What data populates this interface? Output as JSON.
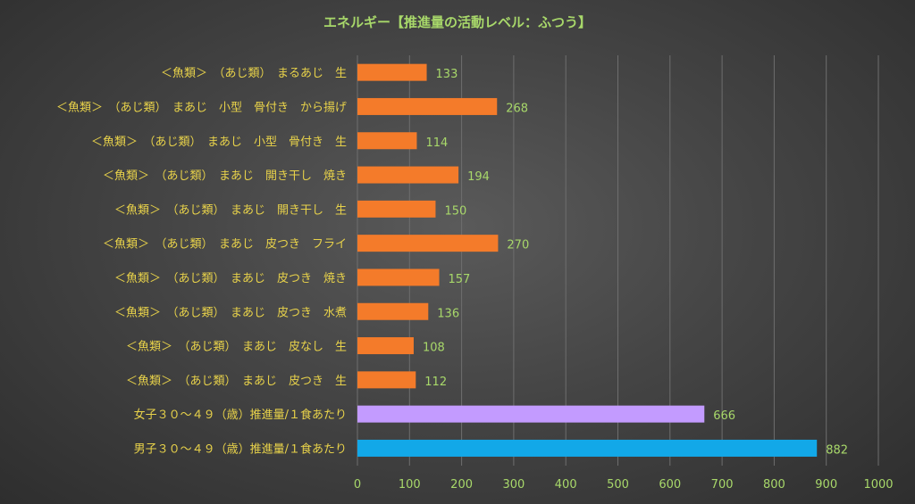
{
  "chart_data": {
    "type": "bar",
    "orientation": "horizontal",
    "title": "エネルギー【推進量の活動レベル：ふつう】",
    "xlabel": "",
    "ylabel": "",
    "xlim": [
      0,
      1000
    ],
    "xticks": [
      0,
      100,
      200,
      300,
      400,
      500,
      600,
      700,
      800,
      900,
      1000
    ],
    "grid": "vertical",
    "legend": "none",
    "data_labels": true,
    "colors": {
      "food": "#f47b2a",
      "female": "#c39bff",
      "male": "#12a8e8",
      "title_text": "#a8d86a",
      "label_text": "#e8d24a",
      "value_text": "#a8d86a",
      "grid": "#6e6e6e"
    },
    "bars": [
      {
        "label": "＜魚類＞　（あじ類）　まるあじ　生",
        "value": 133,
        "group": "food"
      },
      {
        "label": "＜魚類＞　（あじ類）　まあじ　小型　骨付き　から揚げ",
        "value": 268,
        "group": "food"
      },
      {
        "label": "＜魚類＞　（あじ類）　まあじ　小型　骨付き　生",
        "value": 114,
        "group": "food"
      },
      {
        "label": "＜魚類＞　（あじ類）　まあじ　開き干し　焼き",
        "value": 194,
        "group": "food"
      },
      {
        "label": "＜魚類＞　（あじ類）　まあじ　開き干し　生",
        "value": 150,
        "group": "food"
      },
      {
        "label": "＜魚類＞　（あじ類）　まあじ　皮つき　フライ",
        "value": 270,
        "group": "food"
      },
      {
        "label": "＜魚類＞　（あじ類）　まあじ　皮つき　焼き",
        "value": 157,
        "group": "food"
      },
      {
        "label": "＜魚類＞　（あじ類）　まあじ　皮つき　水煮",
        "value": 136,
        "group": "food"
      },
      {
        "label": "＜魚類＞　（あじ類）　まあじ　皮なし　生",
        "value": 108,
        "group": "food"
      },
      {
        "label": "＜魚類＞　（あじ類）　まあじ　皮つき　生",
        "value": 112,
        "group": "food"
      },
      {
        "label": "女子３０～４９（歳）推進量/１食あたり",
        "value": 666,
        "group": "female"
      },
      {
        "label": "男子３０～４９（歳）推進量/１食あたり",
        "value": 882,
        "group": "male"
      }
    ]
  }
}
